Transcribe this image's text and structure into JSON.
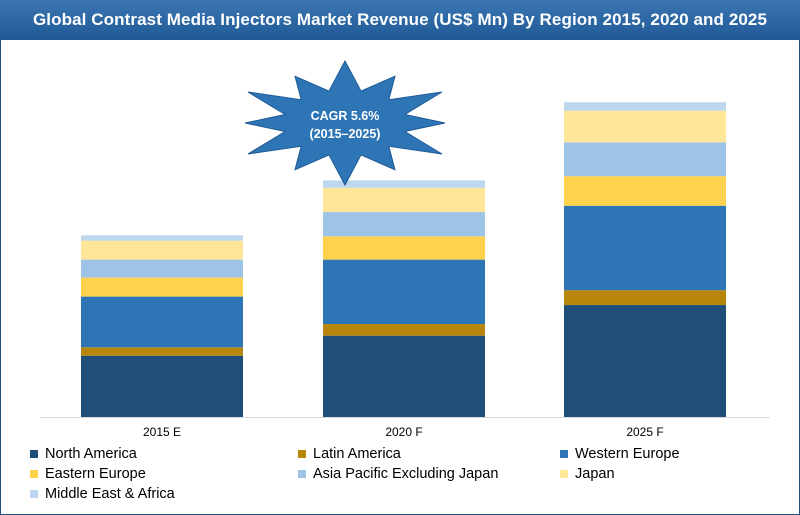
{
  "chart_data": {
    "type": "bar",
    "stacked": true,
    "title": "Global Contrast Media Injectors Market Revenue (US$ Mn) By Region 2015, 2020 and 2025",
    "categories": [
      "2015 E",
      "2020 F",
      "2025 F"
    ],
    "series": [
      {
        "name": "North America",
        "color": "#1f4e79",
        "values": [
          58,
          77,
          106
        ]
      },
      {
        "name": "Latin America",
        "color": "#b8860b",
        "values": [
          8,
          11,
          14
        ]
      },
      {
        "name": "Western Europe",
        "color": "#2e75b6",
        "values": [
          48,
          61,
          80
        ]
      },
      {
        "name": "Eastern Europe",
        "color": "#ffd24d",
        "values": [
          18,
          22,
          28
        ]
      },
      {
        "name": "Asia Pacific Excluding Japan",
        "color": "#9dc3e6",
        "values": [
          17,
          23,
          32
        ]
      },
      {
        "name": "Japan",
        "color": "#ffe699",
        "values": [
          18,
          23,
          30
        ]
      },
      {
        "name": "Middle East & Africa",
        "color": "#bdd7ee",
        "values": [
          5,
          7,
          8
        ]
      }
    ],
    "ylim": [
      0,
      320
    ],
    "grid": false,
    "legend_position": "bottom",
    "annotation": {
      "line1": "CAGR 5.6%",
      "line2": "(2015–2025)",
      "color": "#2e75b6"
    }
  }
}
